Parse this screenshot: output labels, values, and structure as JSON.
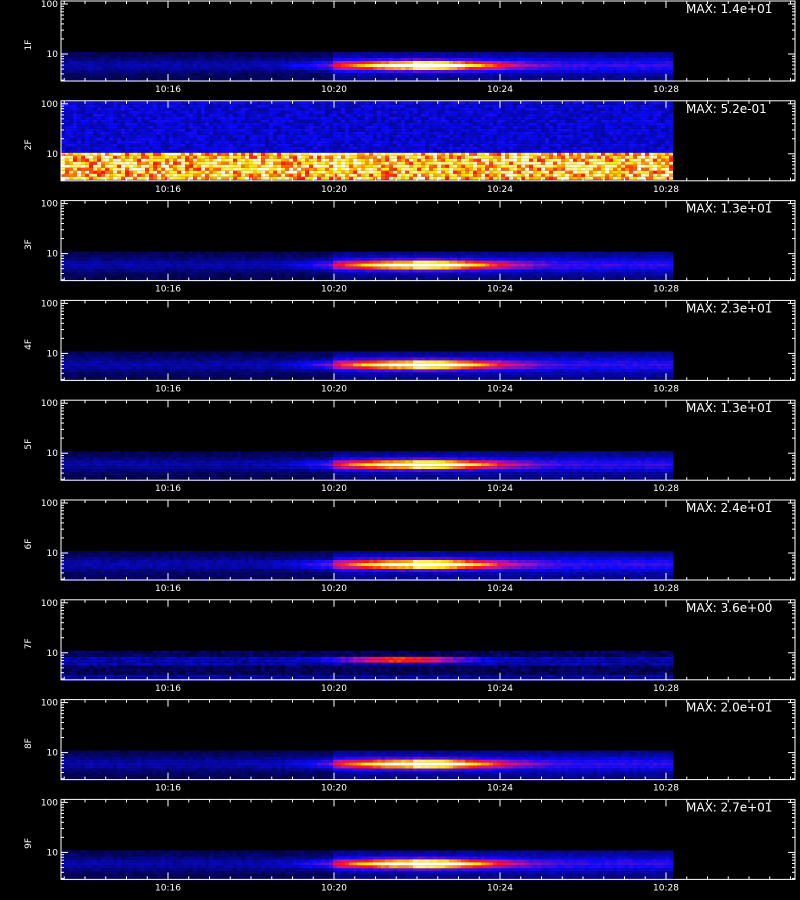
{
  "chart_data": [
    {
      "type": "heatmap",
      "panel": "1F",
      "ylabel": "1F",
      "max_label": "MAX: 1.4e+01",
      "xticks": [
        "10:16",
        "10:20",
        "10:24",
        "10:28"
      ],
      "yticks": [
        "10",
        "100"
      ],
      "yscale": "log",
      "peak": 14,
      "pattern": "burst"
    },
    {
      "type": "heatmap",
      "panel": "2F",
      "ylabel": "2F",
      "max_label": "MAX: 5.2e-01",
      "xticks": [
        "10:16",
        "10:20",
        "10:24",
        "10:28"
      ],
      "yticks": [
        "10",
        "100"
      ],
      "yscale": "log",
      "peak": 0.52,
      "pattern": "uniform"
    },
    {
      "type": "heatmap",
      "panel": "3F",
      "ylabel": "3F",
      "max_label": "MAX: 1.3e+01",
      "xticks": [
        "10:16",
        "10:20",
        "10:24",
        "10:28"
      ],
      "yticks": [
        "10",
        "100"
      ],
      "yscale": "log",
      "peak": 13,
      "pattern": "burst"
    },
    {
      "type": "heatmap",
      "panel": "4F",
      "ylabel": "4F",
      "max_label": "MAX: 2.3e+01",
      "xticks": [
        "10:16",
        "10:20",
        "10:24",
        "10:28"
      ],
      "yticks": [
        "10",
        "100"
      ],
      "yscale": "log",
      "peak": 23,
      "pattern": "burst"
    },
    {
      "type": "heatmap",
      "panel": "5F",
      "ylabel": "5F",
      "max_label": "MAX: 1.3e+01",
      "xticks": [
        "10:16",
        "10:20",
        "10:24",
        "10:28"
      ],
      "yticks": [
        "10",
        "100"
      ],
      "yscale": "log",
      "peak": 13,
      "pattern": "burst"
    },
    {
      "type": "heatmap",
      "panel": "6F",
      "ylabel": "6F",
      "max_label": "MAX: 2.4e+01",
      "xticks": [
        "10:16",
        "10:20",
        "10:24",
        "10:28"
      ],
      "yticks": [
        "10",
        "100"
      ],
      "yscale": "log",
      "peak": 24,
      "pattern": "burst"
    },
    {
      "type": "heatmap",
      "panel": "7F",
      "ylabel": "7F",
      "max_label": "MAX: 3.6e+00",
      "xticks": [
        "10:16",
        "10:20",
        "10:24",
        "10:28"
      ],
      "yticks": [
        "10",
        "100"
      ],
      "yscale": "log",
      "peak": 3.6,
      "pattern": "faint"
    },
    {
      "type": "heatmap",
      "panel": "8F",
      "ylabel": "8F",
      "max_label": "MAX: 2.0e+01",
      "xticks": [
        "10:16",
        "10:20",
        "10:24",
        "10:28"
      ],
      "yticks": [
        "10",
        "100"
      ],
      "yscale": "log",
      "peak": 20,
      "pattern": "burst"
    },
    {
      "type": "heatmap",
      "panel": "9F",
      "ylabel": "9F",
      "max_label": "MAX: 2.7e+01",
      "xticks": [
        "10:16",
        "10:20",
        "10:24",
        "10:28"
      ],
      "yticks": [
        "10",
        "100"
      ],
      "yscale": "log",
      "peak": 27,
      "pattern": "burst"
    }
  ],
  "colors": {
    "background": "#000000",
    "axes": "#ffffff"
  }
}
